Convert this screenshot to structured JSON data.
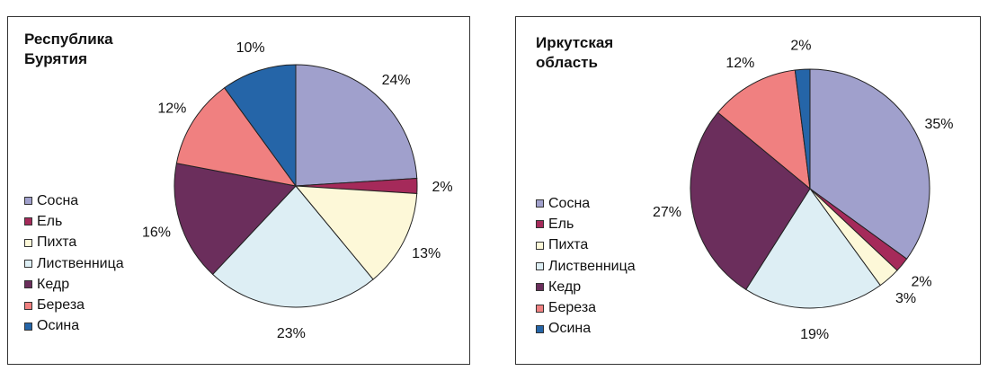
{
  "chart_data": [
    {
      "type": "pie",
      "title": "Республика\nБурятия",
      "legend_position": "left",
      "categories": [
        "Сосна",
        "Ель",
        "Пихта",
        "Лиственница",
        "Кедр",
        "Береза",
        "Осина"
      ],
      "values": [
        24,
        2,
        13,
        23,
        16,
        12,
        10
      ],
      "labels": [
        "24%",
        "2%",
        "13%",
        "23%",
        "16%",
        "12%",
        "10%"
      ],
      "colors": [
        "#A0A0CC",
        "#A52A5A",
        "#FDF8D8",
        "#DDEEF4",
        "#6B2E5C",
        "#F08080",
        "#2565A8"
      ]
    },
    {
      "type": "pie",
      "title": "Иркутская\nобласть",
      "legend_position": "left",
      "categories": [
        "Сосна",
        "Ель",
        "Пихта",
        "Лиственница",
        "Кедр",
        "Береза",
        "Осина"
      ],
      "values": [
        35,
        2,
        3,
        19,
        27,
        12,
        2
      ],
      "labels": [
        "35%",
        "2%",
        "3%",
        "19%",
        "27%",
        "12%",
        "2%"
      ],
      "colors": [
        "#A0A0CC",
        "#A52A5A",
        "#FDF8D8",
        "#DDEEF4",
        "#6B2E5C",
        "#F08080",
        "#2565A8"
      ]
    }
  ]
}
